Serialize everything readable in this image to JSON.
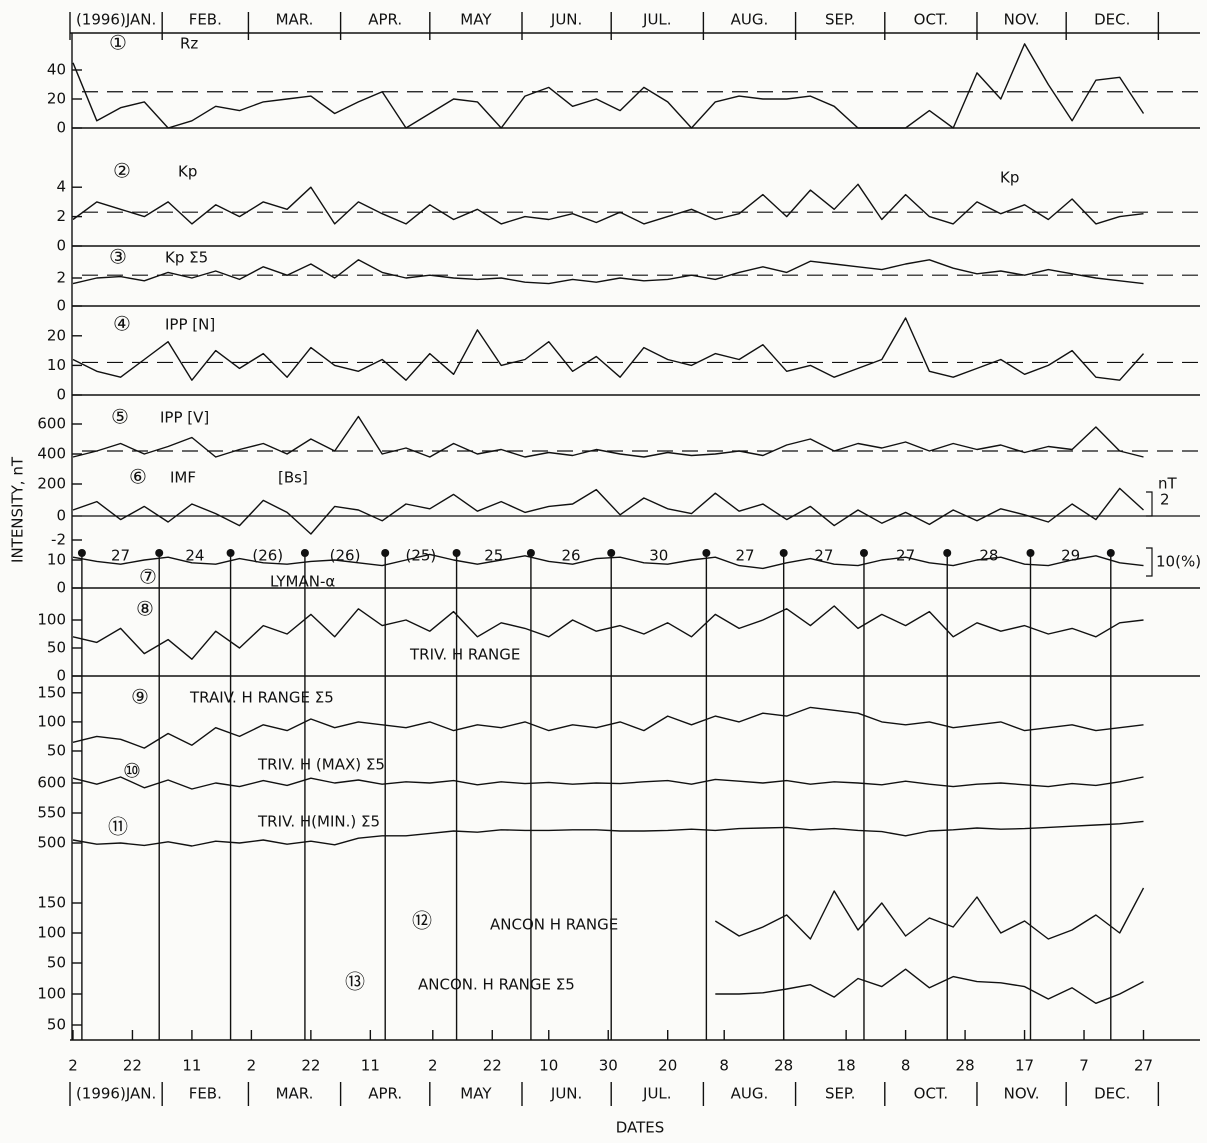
{
  "xlabel": "DATES",
  "ylabel": "INTENSITY, nT",
  "xlim": [
    1,
    381
  ],
  "x": [
    2,
    10,
    18,
    26,
    34,
    42,
    50,
    58,
    66,
    74,
    82,
    90,
    98,
    106,
    114,
    122,
    130,
    138,
    146,
    154,
    162,
    170,
    178,
    186,
    194,
    202,
    210,
    218,
    226,
    234,
    242,
    250,
    258,
    266,
    274,
    282,
    290,
    298,
    306,
    314,
    322,
    330,
    338,
    346,
    354,
    362
  ],
  "xticks": [
    2,
    22,
    {
      "value": 42,
      "label": "11"
    },
    {
      "value": 62,
      "label": "2"
    },
    {
      "value": 82,
      "label": "22"
    },
    {
      "value": 102,
      "label": "11"
    },
    {
      "value": 123,
      "label": "2"
    },
    {
      "value": 143,
      "label": "22"
    },
    {
      "value": 162,
      "label": "10"
    },
    {
      "value": 182,
      "label": "30"
    },
    {
      "value": 202,
      "label": "20"
    },
    {
      "value": 221,
      "label": "8"
    },
    {
      "value": 241,
      "label": "28"
    },
    {
      "value": 262,
      "label": "18"
    },
    {
      "value": 282,
      "label": "8"
    },
    {
      "value": 302,
      "label": "28"
    },
    {
      "value": 322,
      "label": "17"
    },
    {
      "value": 342,
      "label": "7"
    },
    {
      "value": 362,
      "label": "27"
    }
  ],
  "months": [
    "(1996)JAN.",
    "FEB.",
    "MAR.",
    "APR.",
    "MAY",
    "JUN.",
    "JUL.",
    "AUG.",
    "SEP.",
    "OCT.",
    "NOV.",
    "DEC."
  ],
  "month_ticks": [
    1,
    32,
    61,
    92,
    122,
    153,
    183,
    214,
    245,
    275,
    306,
    336,
    367
  ],
  "rotations": {
    "days": [
      5,
      31,
      55,
      80,
      107,
      131,
      156,
      183,
      215,
      241,
      268,
      296,
      324,
      351
    ],
    "labels": [
      "27",
      "24",
      "(26)",
      "(26)",
      "(25)",
      "25",
      "26",
      "30",
      "27",
      "27",
      "27",
      "28",
      "29"
    ]
  },
  "chart_data": [
    {
      "type": "line",
      "number": "①",
      "title": "Rz",
      "ylim": [
        0,
        50
      ],
      "yticks": [
        0,
        20,
        40
      ],
      "ref_line": 25,
      "ref_style": "dashed",
      "baseline": true,
      "values": [
        45,
        5,
        14,
        18,
        0,
        5,
        15,
        12,
        18,
        20,
        22,
        10,
        18,
        25,
        0,
        10,
        20,
        18,
        0,
        22,
        28,
        15,
        20,
        12,
        28,
        18,
        0,
        18,
        22,
        20,
        20,
        22,
        15,
        0,
        0,
        0,
        12,
        0,
        38,
        20,
        58,
        30,
        5,
        33,
        35,
        10
      ]
    },
    {
      "type": "line",
      "number": "②",
      "title": "Kp",
      "ylim": [
        0,
        5
      ],
      "yticks": [
        0,
        2,
        4
      ],
      "ref_line": 2.3,
      "ref_style": "dashed",
      "baseline": true,
      "values": [
        1.8,
        3,
        2.5,
        2,
        3,
        1.5,
        2.8,
        2,
        3,
        2.5,
        4,
        1.5,
        3,
        2.2,
        1.5,
        2.8,
        1.8,
        2.5,
        1.5,
        2,
        1.8,
        2.2,
        1.6,
        2.3,
        1.5,
        2,
        2.5,
        1.8,
        2.2,
        3.5,
        2,
        3.8,
        2.5,
        4.2,
        1.8,
        3.5,
        2,
        1.5,
        3,
        2.2,
        2.8,
        1.8,
        3.2,
        1.5,
        2,
        2.2
      ]
    },
    {
      "type": "line",
      "number": "③",
      "title": "Kp Σ5",
      "ylim": [
        0,
        4
      ],
      "yticks": [
        0,
        2
      ],
      "ref_line": 2.2,
      "ref_style": "dashed",
      "baseline": true,
      "values": [
        1.6,
        2.0,
        2.1,
        1.8,
        2.4,
        2.0,
        2.5,
        1.9,
        2.8,
        2.2,
        3.0,
        2.0,
        3.3,
        2.4,
        2.0,
        2.2,
        2.0,
        1.9,
        2.0,
        1.7,
        1.6,
        1.9,
        1.7,
        2.0,
        1.8,
        1.9,
        2.2,
        1.9,
        2.4,
        2.8,
        2.4,
        3.2,
        3.0,
        2.8,
        2.6,
        3.0,
        3.3,
        2.7,
        2.3,
        2.5,
        2.2,
        2.6,
        2.3,
        2.0,
        1.8,
        1.6
      ]
    },
    {
      "type": "line",
      "number": "④",
      "title": "IPP  [N]",
      "ylim": [
        0,
        25
      ],
      "yticks": [
        0,
        10,
        20
      ],
      "ref_line": 11,
      "ref_style": "dashed",
      "baseline": true,
      "values": [
        12,
        8,
        6,
        12,
        18,
        5,
        15,
        9,
        14,
        6,
        16,
        10,
        8,
        12,
        5,
        14,
        7,
        22,
        10,
        12,
        18,
        8,
        13,
        6,
        16,
        12,
        10,
        14,
        12,
        17,
        8,
        10,
        6,
        9,
        12,
        26,
        8,
        6,
        9,
        12,
        7,
        10,
        15,
        6,
        5,
        14
      ]
    },
    {
      "type": "line",
      "number": "⑤",
      "title": "IPP   [V]",
      "ylim": [
        150,
        700
      ],
      "yticks": [
        200,
        400,
        600
      ],
      "ref_line": 420,
      "ref_style": "dashed",
      "baseline": false,
      "values": [
        380,
        420,
        470,
        400,
        450,
        510,
        380,
        430,
        470,
        400,
        500,
        420,
        650,
        400,
        440,
        380,
        470,
        400,
        430,
        380,
        410,
        390,
        430,
        400,
        380,
        410,
        390,
        400,
        420,
        390,
        460,
        500,
        420,
        470,
        440,
        480,
        420,
        470,
        430,
        460,
        410,
        450,
        430,
        580,
        420,
        380
      ]
    },
    {
      "type": "line",
      "number": "⑥",
      "title": "IMF",
      "subtitle": "[Bs]",
      "scale_unit": "nT",
      "scale_size": 2,
      "ylim": [
        -3,
        4
      ],
      "yticks": [
        -2,
        0
      ],
      "ref_line": 0,
      "ref_style": "solid",
      "baseline": false,
      "values": [
        0.5,
        1.2,
        -0.3,
        0.8,
        -0.5,
        1.0,
        0.2,
        -0.8,
        1.3,
        0.3,
        -1.5,
        0.8,
        0.5,
        -0.4,
        1.0,
        0.6,
        1.8,
        0.4,
        1.2,
        0.3,
        0.8,
        1.0,
        2.2,
        0.1,
        1.5,
        0.6,
        0.2,
        1.9,
        0.4,
        1.0,
        -0.3,
        0.8,
        -0.8,
        0.5,
        -0.6,
        0.3,
        -0.7,
        0.5,
        -0.4,
        0.6,
        0.1,
        -0.5,
        1.0,
        -0.3,
        2.3,
        0.5
      ]
    },
    {
      "type": "line",
      "number": "⑦",
      "title": "LYMAN-α",
      "scale_label": "10(%)",
      "ylim": [
        0,
        15
      ],
      "yticks": [
        0,
        10
      ],
      "baseline": true,
      "values": [
        11,
        9.5,
        8.5,
        10,
        11,
        9,
        8.5,
        10.5,
        9,
        8.5,
        9.5,
        10,
        9,
        8,
        10,
        12,
        10,
        8.5,
        10,
        11.5,
        9.5,
        8.5,
        10.5,
        11,
        9,
        8.5,
        10,
        11,
        8,
        7,
        9,
        10.5,
        8.5,
        8,
        10,
        11,
        9,
        8,
        10,
        11,
        8.5,
        8,
        10,
        11.5,
        9,
        8
      ]
    },
    {
      "type": "line",
      "number": "⑧",
      "title": "TRIV.  H RANGE",
      "ylim": [
        0,
        150
      ],
      "yticks": [
        0,
        50,
        100
      ],
      "baseline": true,
      "values": [
        70,
        60,
        85,
        40,
        65,
        30,
        80,
        50,
        90,
        75,
        110,
        70,
        120,
        90,
        100,
        80,
        115,
        70,
        95,
        85,
        70,
        100,
        80,
        90,
        75,
        95,
        70,
        110,
        85,
        100,
        120,
        90,
        125,
        85,
        110,
        90,
        115,
        70,
        95,
        80,
        90,
        75,
        85,
        70,
        95,
        100
      ]
    },
    {
      "type": "line",
      "number": "⑨",
      "title": "TRAIV.  H    RANGE   Σ5",
      "ylim": [
        40,
        160
      ],
      "yticks": [
        50,
        100,
        150
      ],
      "baseline": false,
      "values": [
        65,
        75,
        70,
        55,
        80,
        60,
        90,
        75,
        95,
        85,
        105,
        90,
        100,
        95,
        90,
        100,
        85,
        95,
        90,
        100,
        85,
        95,
        90,
        100,
        85,
        110,
        95,
        110,
        100,
        115,
        110,
        125,
        120,
        115,
        100,
        95,
        100,
        90,
        95,
        100,
        85,
        90,
        95,
        85,
        90,
        95
      ]
    },
    {
      "type": "line",
      "number": "⑩",
      "title": "TRIV.  H (MAX) Σ5",
      "ylim": [
        580,
        630
      ],
      "yticks": [
        600
      ],
      "baseline": false,
      "values": [
        608,
        598,
        610,
        592,
        605,
        590,
        600,
        594,
        604,
        596,
        608,
        600,
        605,
        598,
        602,
        600,
        604,
        597,
        602,
        599,
        601,
        598,
        600,
        599,
        602,
        604,
        598,
        606,
        603,
        600,
        604,
        598,
        602,
        600,
        597,
        603,
        598,
        594,
        598,
        600,
        597,
        594,
        599,
        596,
        602,
        610
      ]
    },
    {
      "type": "line",
      "number": "⑪",
      "title": "TRIV. H(MIN.) Σ5",
      "ylim": [
        480,
        560
      ],
      "yticks": [
        500,
        550
      ],
      "baseline": false,
      "values": [
        505,
        498,
        500,
        496,
        502,
        495,
        503,
        500,
        505,
        498,
        503,
        497,
        508,
        512,
        512,
        516,
        520,
        518,
        522,
        521,
        521,
        522,
        522,
        520,
        520,
        521,
        523,
        521,
        524,
        525,
        526,
        522,
        524,
        521,
        519,
        512,
        520,
        522,
        525,
        523,
        524,
        526,
        528,
        530,
        532,
        536
      ]
    },
    {
      "type": "line",
      "number": "⑫",
      "title": "ANCON  H    RANGE",
      "ylim": [
        40,
        200
      ],
      "yticks": [
        50,
        100,
        150
      ],
      "baseline": false,
      "values": [
        null,
        null,
        null,
        null,
        null,
        null,
        null,
        null,
        null,
        null,
        null,
        null,
        null,
        null,
        null,
        null,
        null,
        null,
        null,
        null,
        null,
        null,
        null,
        null,
        null,
        null,
        null,
        120,
        95,
        110,
        130,
        90,
        170,
        105,
        150,
        95,
        125,
        110,
        160,
        100,
        120,
        90,
        105,
        130,
        100,
        175
      ]
    },
    {
      "type": "line",
      "number": "⑬",
      "title": "ANCON. H  RANGE Σ5",
      "ylim": [
        40,
        150
      ],
      "yticks": [
        50,
        100
      ],
      "baseline": false,
      "values": [
        null,
        null,
        null,
        null,
        null,
        null,
        null,
        null,
        null,
        null,
        null,
        null,
        null,
        null,
        null,
        null,
        null,
        null,
        null,
        null,
        null,
        null,
        null,
        null,
        null,
        null,
        null,
        100,
        100,
        102,
        108,
        115,
        95,
        125,
        112,
        140,
        110,
        128,
        120,
        118,
        112,
        92,
        110,
        85,
        100,
        120
      ]
    }
  ]
}
